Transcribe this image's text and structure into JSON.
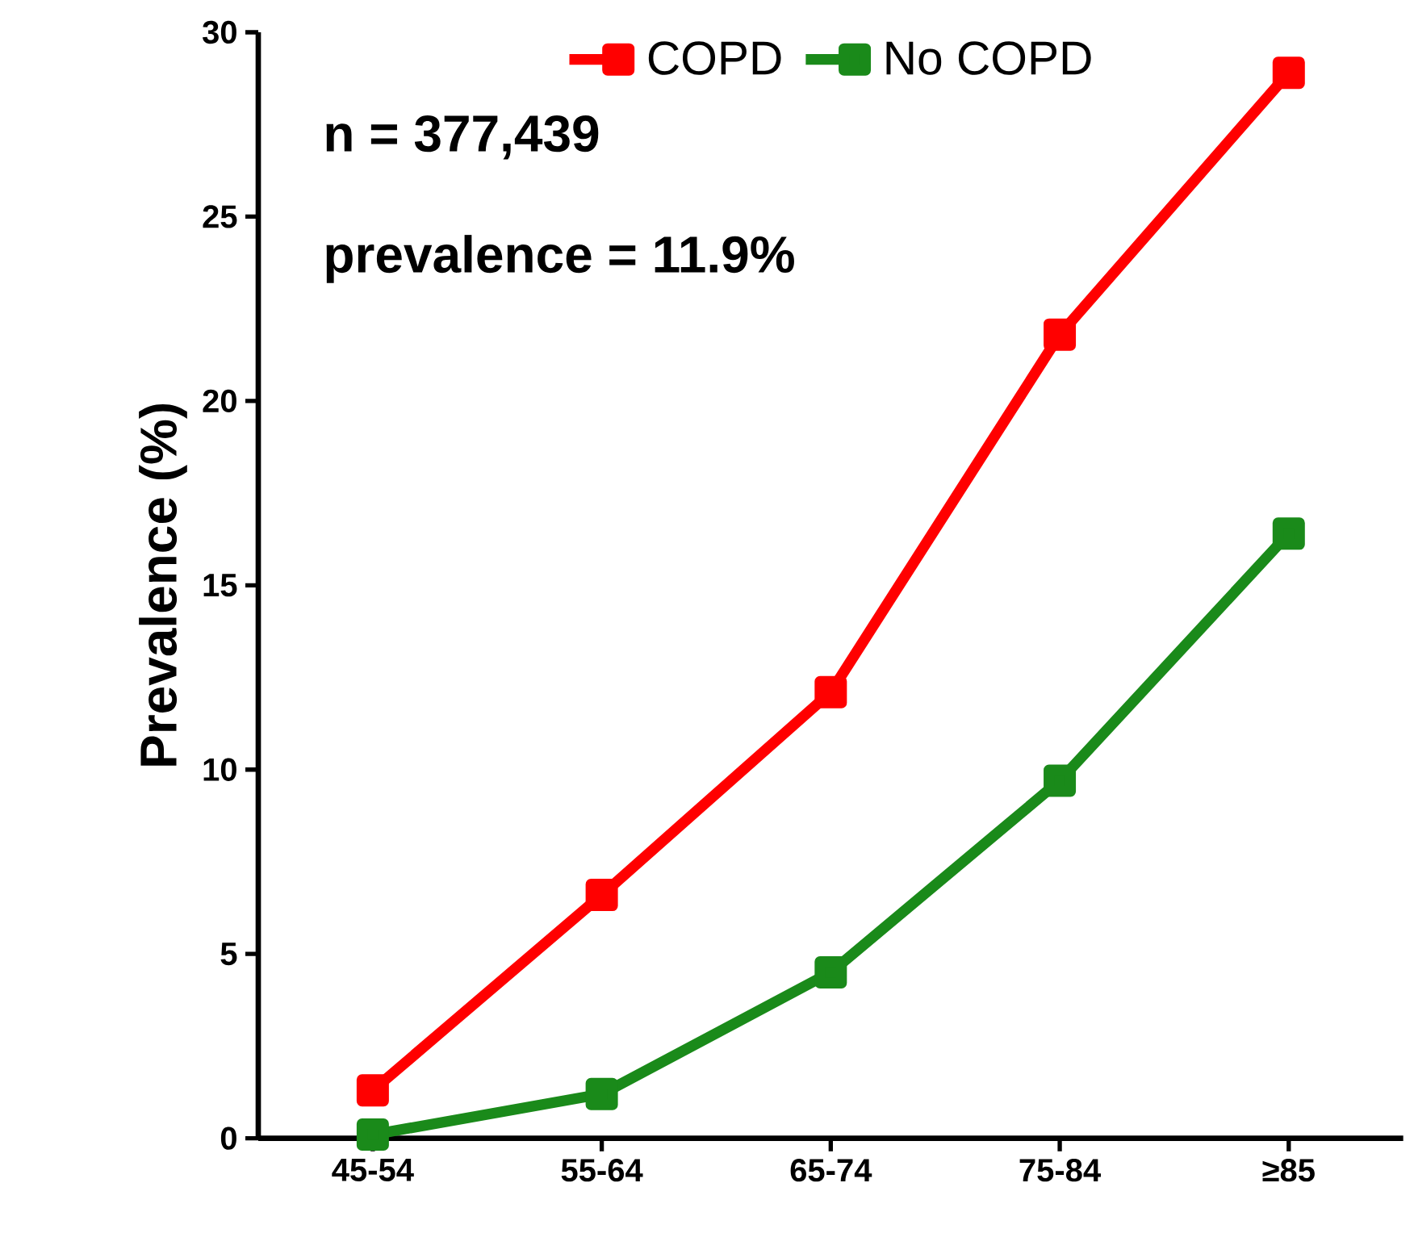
{
  "chart_data": {
    "type": "line",
    "ylabel": "Prevalence (%)",
    "categories": [
      "45-54",
      "55-64",
      "65-74",
      "75-84",
      "≥85"
    ],
    "series": [
      {
        "name": "COPD",
        "color": "#ff0000",
        "values": [
          1.3,
          6.6,
          12.1,
          21.8,
          28.9
        ]
      },
      {
        "name": "No COPD",
        "color": "#1a8a1a",
        "values": [
          0.1,
          1.2,
          4.5,
          9.7,
          16.4
        ]
      }
    ],
    "ylim": [
      0,
      30
    ],
    "yticks": [
      0,
      5,
      10,
      15,
      20,
      25,
      30
    ],
    "annotations": [
      "n = 377,439",
      "prevalence = 11.9%"
    ],
    "legend": "top",
    "marker": "square",
    "grid": false
  }
}
